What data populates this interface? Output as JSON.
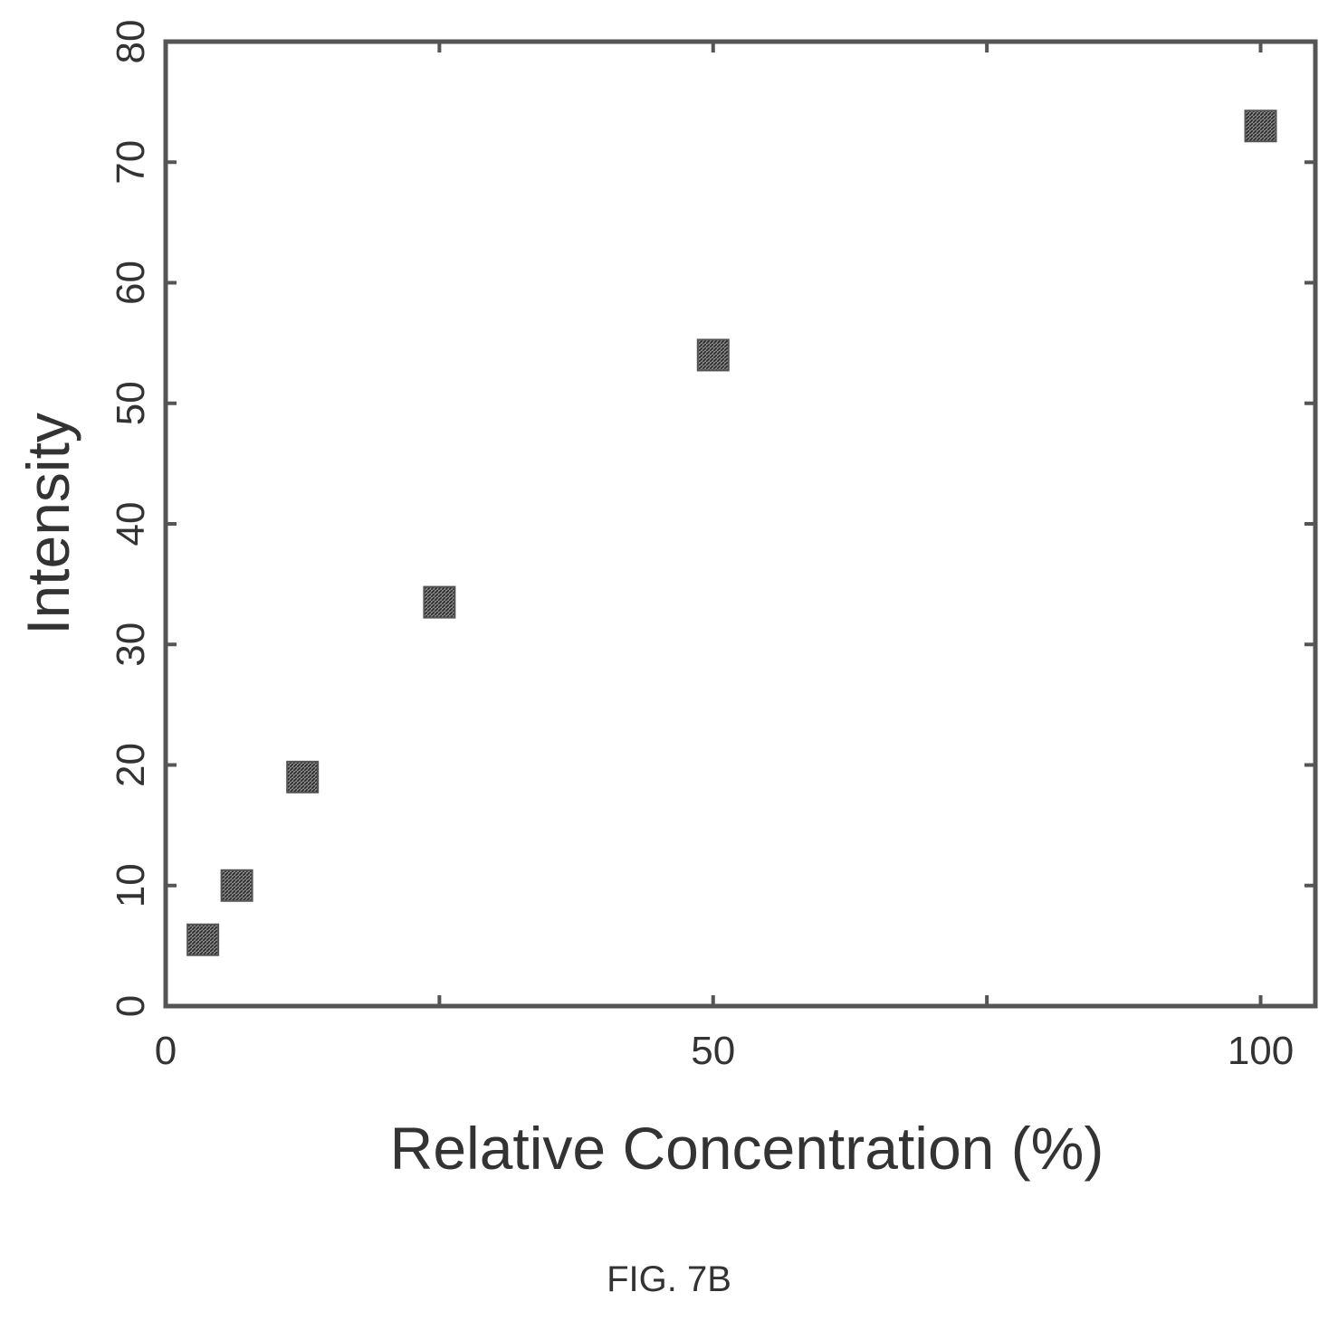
{
  "chart_data": {
    "type": "scatter",
    "xlabel": "Relative Concentration (%)",
    "ylabel": "Intensity",
    "xlim": [
      0,
      105
    ],
    "ylim": [
      0,
      80
    ],
    "x_ticks": [
      0,
      50,
      100
    ],
    "y_ticks": [
      0,
      10,
      20,
      30,
      40,
      50,
      60,
      70,
      80
    ],
    "grid": false,
    "marker": "square",
    "marker_color": "#555555",
    "series": [
      {
        "x": [
          3.4,
          6.5,
          12.5,
          25,
          50,
          100
        ],
        "y": [
          5.5,
          10,
          19,
          33.5,
          54,
          73
        ]
      }
    ]
  },
  "caption": "FIG. 7B"
}
